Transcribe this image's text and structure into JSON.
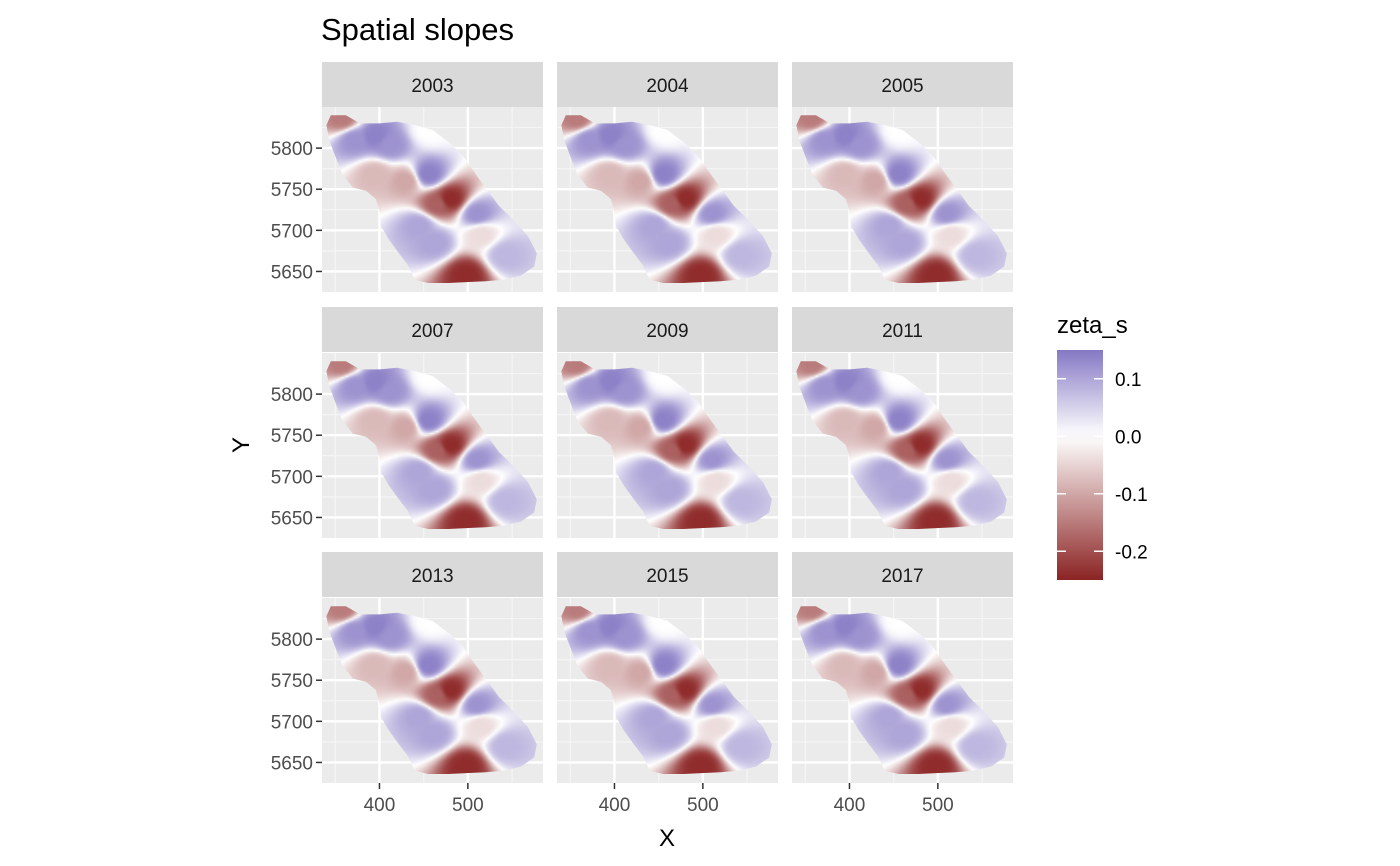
{
  "chart_data": {
    "type": "heatmap",
    "title": "Spatial slopes",
    "xlabel": "X",
    "ylabel": "Y",
    "facet_labels": [
      "2003",
      "2004",
      "2005",
      "2007",
      "2009",
      "2011",
      "2013",
      "2015",
      "2017"
    ],
    "xlim": [
      335,
      585
    ],
    "ylim": [
      5625,
      5850
    ],
    "x_ticks": [
      400,
      500
    ],
    "x_tick_labels": [
      "400",
      "500"
    ],
    "y_ticks": [
      5650,
      5700,
      5750,
      5800
    ],
    "y_tick_labels": [
      "5650",
      "5700",
      "5750",
      "5800"
    ],
    "legend": {
      "title": "zeta_s",
      "placement": "right",
      "range": [
        -0.25,
        0.15
      ],
      "ticks": [
        0.1,
        0.0,
        -0.1,
        -0.2
      ],
      "tick_labels": [
        "0.1",
        "0.0",
        "-0.1",
        "-0.2"
      ],
      "low_color": "#8b2323",
      "mid_color": "#ffffff",
      "high_color": "#8578c4"
    },
    "grid": true,
    "panel_background": "#ebebeb",
    "strip_background": "#d9d9d9",
    "field_note": "Same smooth spatial field repeated in every year panel; values approximate.",
    "domain_outline": [
      [
        345,
        5840
      ],
      [
        362,
        5840
      ],
      [
        378,
        5830
      ],
      [
        400,
        5830
      ],
      [
        420,
        5832
      ],
      [
        440,
        5828
      ],
      [
        460,
        5822
      ],
      [
        480,
        5806
      ],
      [
        495,
        5790
      ],
      [
        505,
        5774
      ],
      [
        520,
        5752
      ],
      [
        535,
        5730
      ],
      [
        552,
        5712
      ],
      [
        568,
        5693
      ],
      [
        578,
        5672
      ],
      [
        575,
        5656
      ],
      [
        560,
        5645
      ],
      [
        540,
        5640
      ],
      [
        520,
        5638
      ],
      [
        498,
        5637
      ],
      [
        478,
        5636
      ],
      [
        455,
        5636
      ],
      [
        440,
        5640
      ],
      [
        432,
        5658
      ],
      [
        420,
        5675
      ],
      [
        410,
        5690
      ],
      [
        402,
        5705
      ],
      [
        400,
        5722
      ],
      [
        396,
        5738
      ],
      [
        385,
        5748
      ],
      [
        370,
        5752
      ],
      [
        358,
        5768
      ],
      [
        350,
        5790
      ],
      [
        343,
        5810
      ],
      [
        340,
        5828
      ]
    ],
    "field_centers": [
      {
        "x": 372,
        "y": 5810,
        "value": 0.12
      },
      {
        "x": 395,
        "y": 5815,
        "value": 0.14
      },
      {
        "x": 412,
        "y": 5804,
        "value": 0.12
      },
      {
        "x": 455,
        "y": 5768,
        "value": 0.14
      },
      {
        "x": 510,
        "y": 5720,
        "value": 0.12
      },
      {
        "x": 445,
        "y": 5706,
        "value": 0.1
      },
      {
        "x": 462,
        "y": 5685,
        "value": 0.1
      },
      {
        "x": 542,
        "y": 5670,
        "value": 0.08
      },
      {
        "x": 480,
        "y": 5738,
        "value": -0.24
      },
      {
        "x": 465,
        "y": 5732,
        "value": -0.18
      },
      {
        "x": 498,
        "y": 5646,
        "value": -0.24
      },
      {
        "x": 430,
        "y": 5760,
        "value": -0.1
      },
      {
        "x": 395,
        "y": 5768,
        "value": -0.08
      },
      {
        "x": 515,
        "y": 5695,
        "value": -0.04
      },
      {
        "x": 358,
        "y": 5836,
        "value": -0.15
      },
      {
        "x": 456,
        "y": 5822,
        "value": 0.0
      }
    ]
  }
}
